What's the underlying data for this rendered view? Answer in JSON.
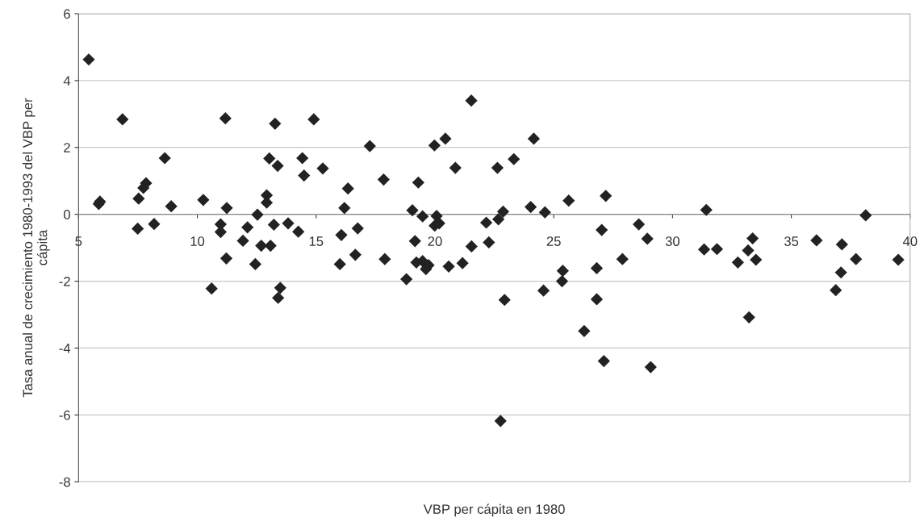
{
  "chart_data": {
    "type": "scatter",
    "xlabel": "VBP per cápita en 1980",
    "ylabel": "Tasa anual de crecimiento 1980-1993 del VBP per cápita",
    "x": [
      5.43,
      6.85,
      11.18,
      13.27,
      14.9,
      8.63,
      13.03,
      13.38,
      14.42,
      14.49,
      15.28,
      16.34,
      7.84,
      7.73,
      7.53,
      5.85,
      5.9,
      8.9,
      10.25,
      11.24,
      12.92,
      12.92,
      12.53,
      16.19,
      7.49,
      8.18,
      10.98,
      10.98,
      12.11,
      13.22,
      13.82,
      14.25,
      16.06,
      11.92,
      12.69,
      13.08,
      11.22,
      12.44,
      10.6,
      13.49,
      13.4,
      16.0,
      16.65,
      16.75,
      17.26,
      17.84,
      19.3,
      19.98,
      20.44,
      20.86,
      21.53,
      22.63,
      23.32,
      24.16,
      24.03,
      24.63,
      25.63,
      27.19,
      19.05,
      19.48,
      20.07,
      20.18,
      19.99,
      22.16,
      22.67,
      22.87,
      27.02,
      17.89,
      19.16,
      21.54,
      22.27,
      19.22,
      19.48,
      19.62,
      19.73,
      18.8,
      20.58,
      21.16,
      22.93,
      22.76,
      24.57,
      25.38,
      25.35,
      26.81,
      27.89,
      26.81,
      26.28,
      27.11,
      31.42,
      38.13,
      28.58,
      28.94,
      31.33,
      31.87,
      33.37,
      33.18,
      32.75,
      33.51,
      33.22,
      29.08,
      36.06,
      37.13,
      37.72,
      37.09,
      36.87,
      39.5
    ],
    "values": [
      4.63,
      2.84,
      2.87,
      2.71,
      2.84,
      1.68,
      1.67,
      1.45,
      1.68,
      1.16,
      1.37,
      0.77,
      0.93,
      0.79,
      0.47,
      0.31,
      0.38,
      0.24,
      0.43,
      0.19,
      0.57,
      0.35,
      -0.01,
      0.19,
      -0.43,
      -0.29,
      -0.3,
      -0.53,
      -0.39,
      -0.31,
      -0.27,
      -0.52,
      -0.62,
      -0.79,
      -0.94,
      -0.94,
      -1.32,
      -1.49,
      -2.22,
      -2.2,
      -2.5,
      -1.49,
      -1.21,
      -0.42,
      2.04,
      1.04,
      0.95,
      2.06,
      2.26,
      1.39,
      3.4,
      1.39,
      1.65,
      2.26,
      0.22,
      0.06,
      0.41,
      0.55,
      0.12,
      -0.06,
      -0.05,
      -0.27,
      -0.34,
      -0.25,
      -0.15,
      0.08,
      -0.47,
      -1.34,
      -0.8,
      -0.96,
      -0.84,
      -1.44,
      -1.4,
      -1.64,
      -1.52,
      -1.94,
      -1.56,
      -1.46,
      -2.56,
      -6.18,
      -2.28,
      -1.69,
      -2.0,
      -1.61,
      -1.34,
      -2.54,
      -3.49,
      -4.39,
      0.13,
      -0.03,
      -0.3,
      -0.73,
      -1.05,
      -1.04,
      -0.72,
      -1.08,
      -1.44,
      -1.36,
      -3.08,
      -4.57,
      -0.78,
      -0.9,
      -1.34,
      -1.74,
      -2.27,
      -1.36
    ],
    "color": "#222222",
    "marker": "diamond",
    "xlim": [
      5,
      40
    ],
    "xticks": [
      5,
      10,
      15,
      20,
      25,
      30,
      35,
      40
    ],
    "ylim": [
      -8,
      6
    ],
    "yticks": [
      -8,
      -6,
      -4,
      -2,
      0,
      2,
      4,
      6
    ],
    "grid": "y"
  }
}
